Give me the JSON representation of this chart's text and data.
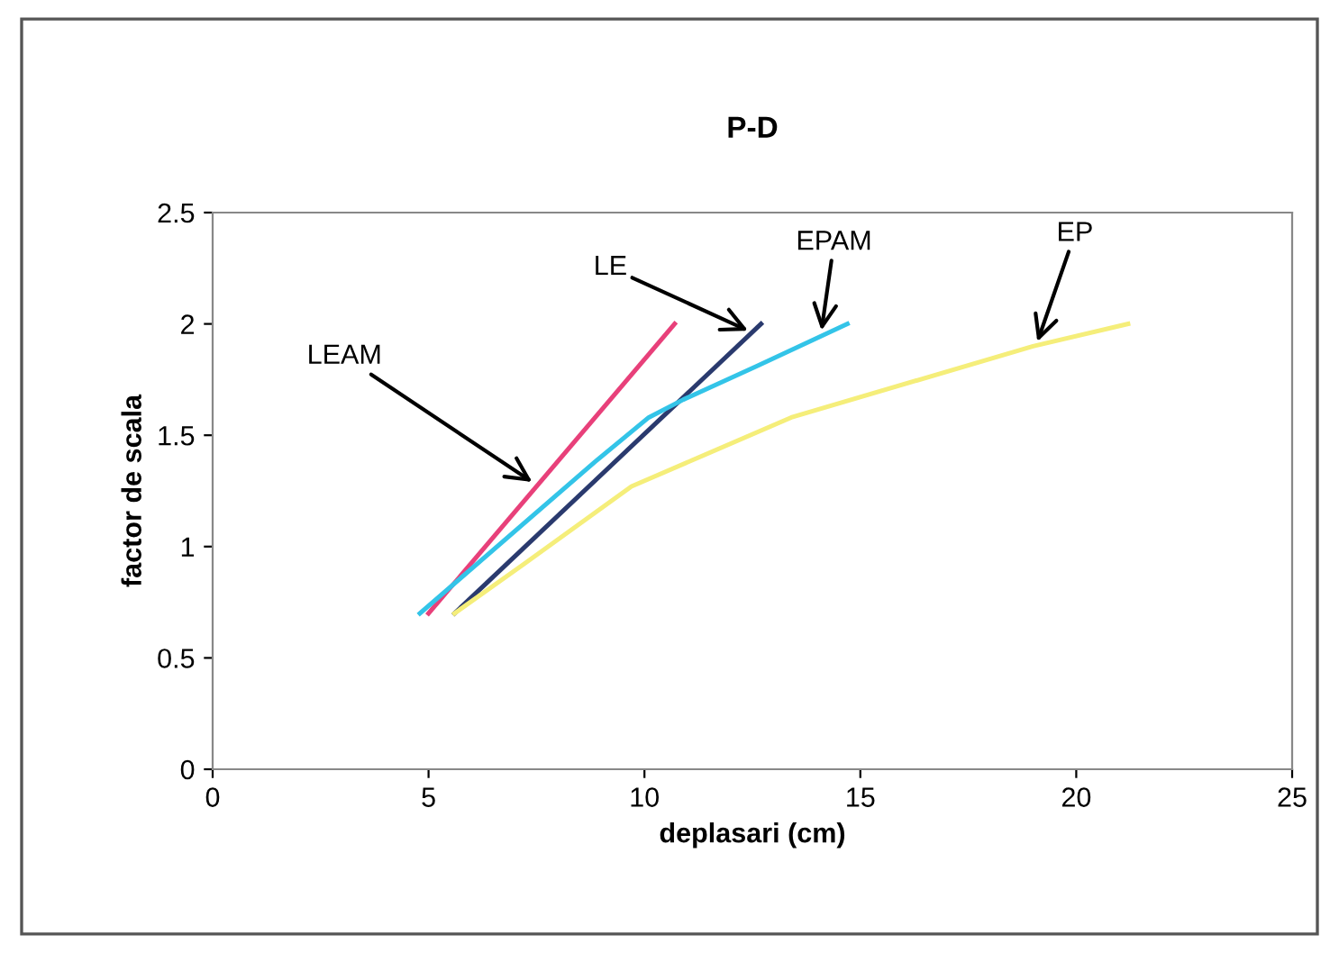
{
  "chart_data": {
    "type": "line",
    "title": "P-D",
    "xlabel": "deplasari (cm)",
    "ylabel": "factor de scala",
    "xlim": [
      0,
      25
    ],
    "xticks": [
      0,
      5,
      10,
      15,
      20,
      25
    ],
    "ylim": [
      0,
      2.5
    ],
    "yticks": [
      0,
      0.5,
      1,
      1.5,
      2,
      2.5
    ],
    "grid": false,
    "legend": false,
    "marker": "none",
    "line_style": "solid",
    "series": [
      {
        "color": "#e8407a",
        "x": [
          5.0,
          10.7
        ],
        "values": [
          0.7,
          2.0
        ]
      },
      {
        "color": "#2a3a6e",
        "x": [
          5.6,
          12.7
        ],
        "values": [
          0.7,
          2.0
        ]
      },
      {
        "color": "#33c4e8",
        "x": [
          4.8,
          8.85,
          10.1,
          10.9,
          12.6,
          14.7
        ],
        "values": [
          0.7,
          1.38,
          1.58,
          1.66,
          1.81,
          2.0
        ]
      },
      {
        "color": "#f5ee7a",
        "x": [
          5.6,
          7.2,
          9.7,
          13.4,
          19.0,
          21.2
        ],
        "values": [
          0.7,
          0.92,
          1.27,
          1.58,
          1.9,
          2.0
        ]
      }
    ],
    "annotations": [
      {
        "text": "LEAM",
        "x": 7.4,
        "y": 1.29
      },
      {
        "text": "LE",
        "x": 12.4,
        "y": 1.97
      },
      {
        "text": "EPAM",
        "x": 14.1,
        "y": 1.97
      },
      {
        "text": "EP",
        "x": 19.1,
        "y": 1.92
      }
    ]
  }
}
